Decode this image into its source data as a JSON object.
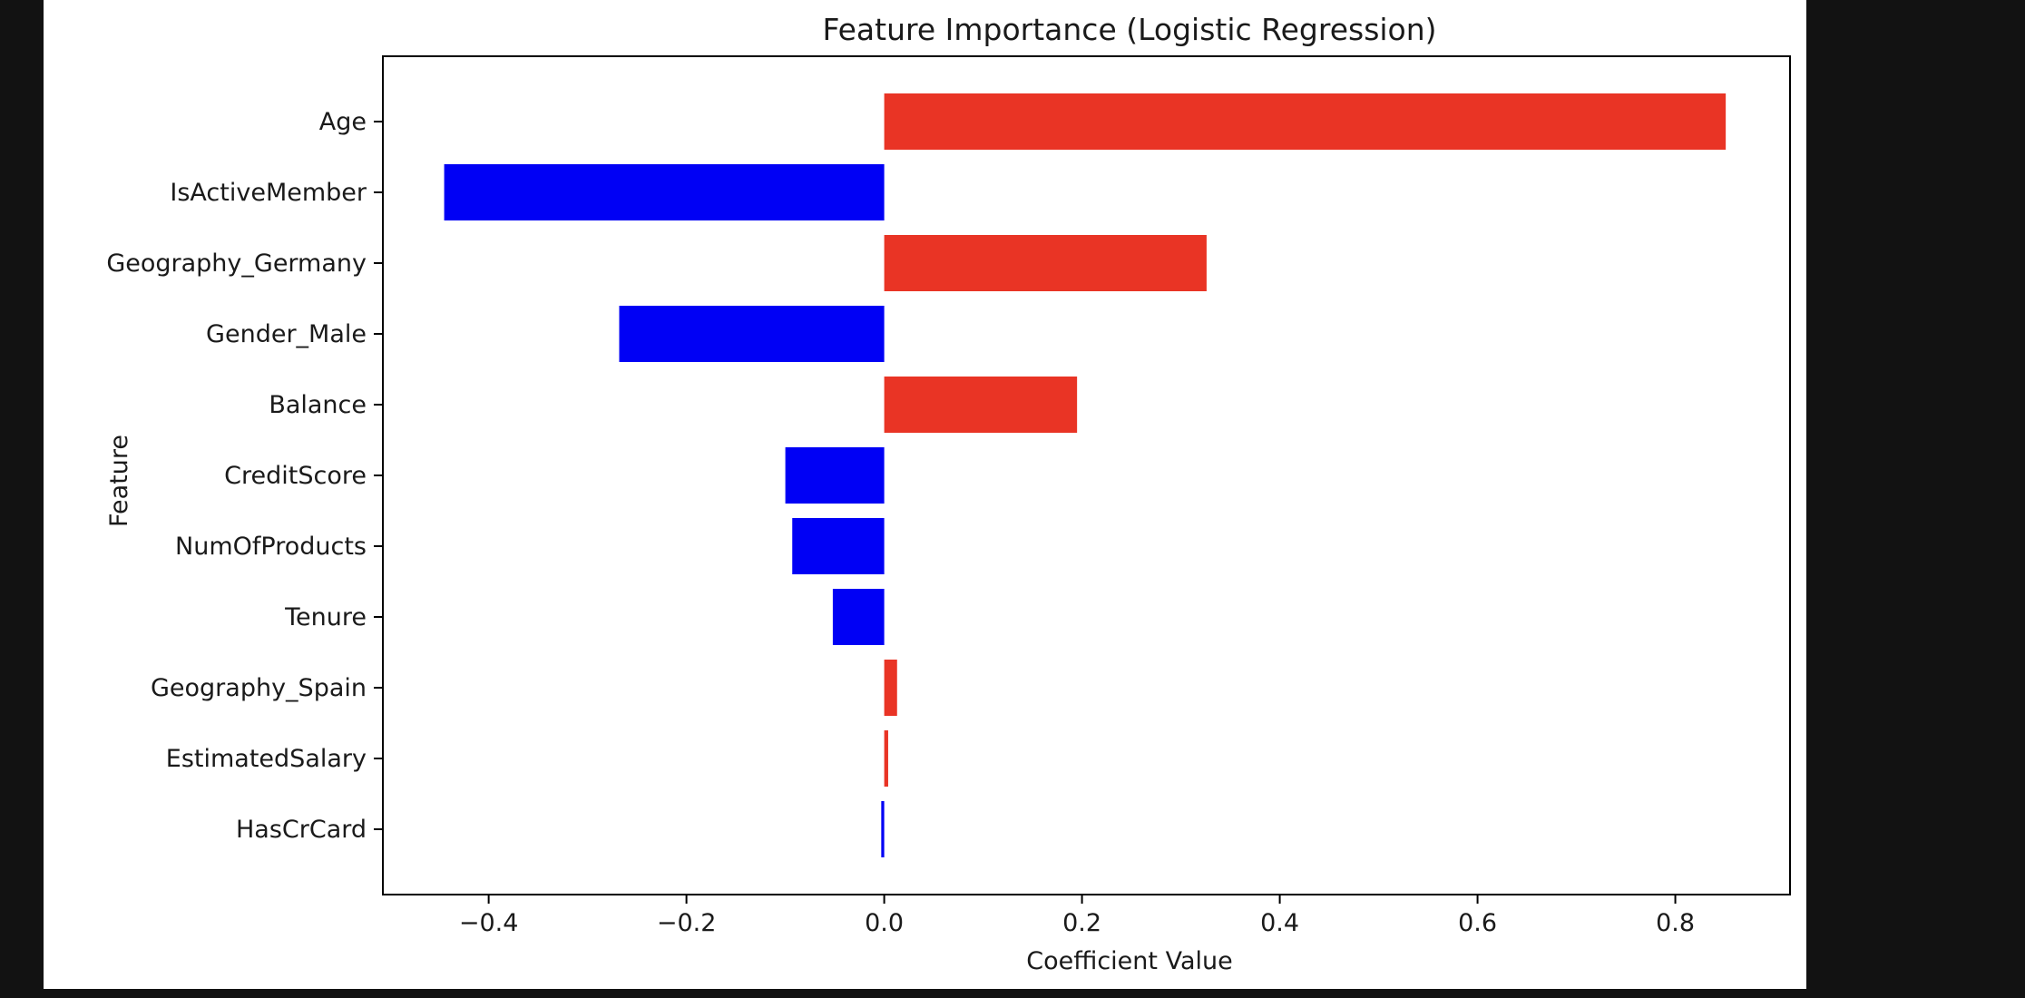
{
  "chart_data": {
    "type": "bar",
    "orientation": "horizontal",
    "title": "Feature Importance (Logistic Regression)",
    "xlabel": "Coefficient Value",
    "ylabel": "Feature",
    "categories": [
      "Age",
      "IsActiveMember",
      "Geography_Germany",
      "Gender_Male",
      "Balance",
      "CreditScore",
      "NumOfProducts",
      "Tenure",
      "Geography_Spain",
      "EstimatedSalary",
      "HasCrCard"
    ],
    "values": [
      0.851,
      -0.445,
      0.326,
      -0.268,
      0.195,
      -0.1,
      -0.093,
      -0.052,
      0.013,
      0.004,
      -0.003
    ],
    "xlim": [
      -0.507,
      0.916
    ],
    "xticks": [
      -0.4,
      -0.2,
      0.0,
      0.2,
      0.4,
      0.6,
      0.8
    ],
    "xtick_labels": [
      "−0.4",
      "−0.2",
      "0.0",
      "0.2",
      "0.4",
      "0.6",
      "0.8"
    ],
    "grid": false,
    "legend": "none",
    "colors": {
      "positive": "#e93425",
      "negative": "#0000f5"
    }
  }
}
